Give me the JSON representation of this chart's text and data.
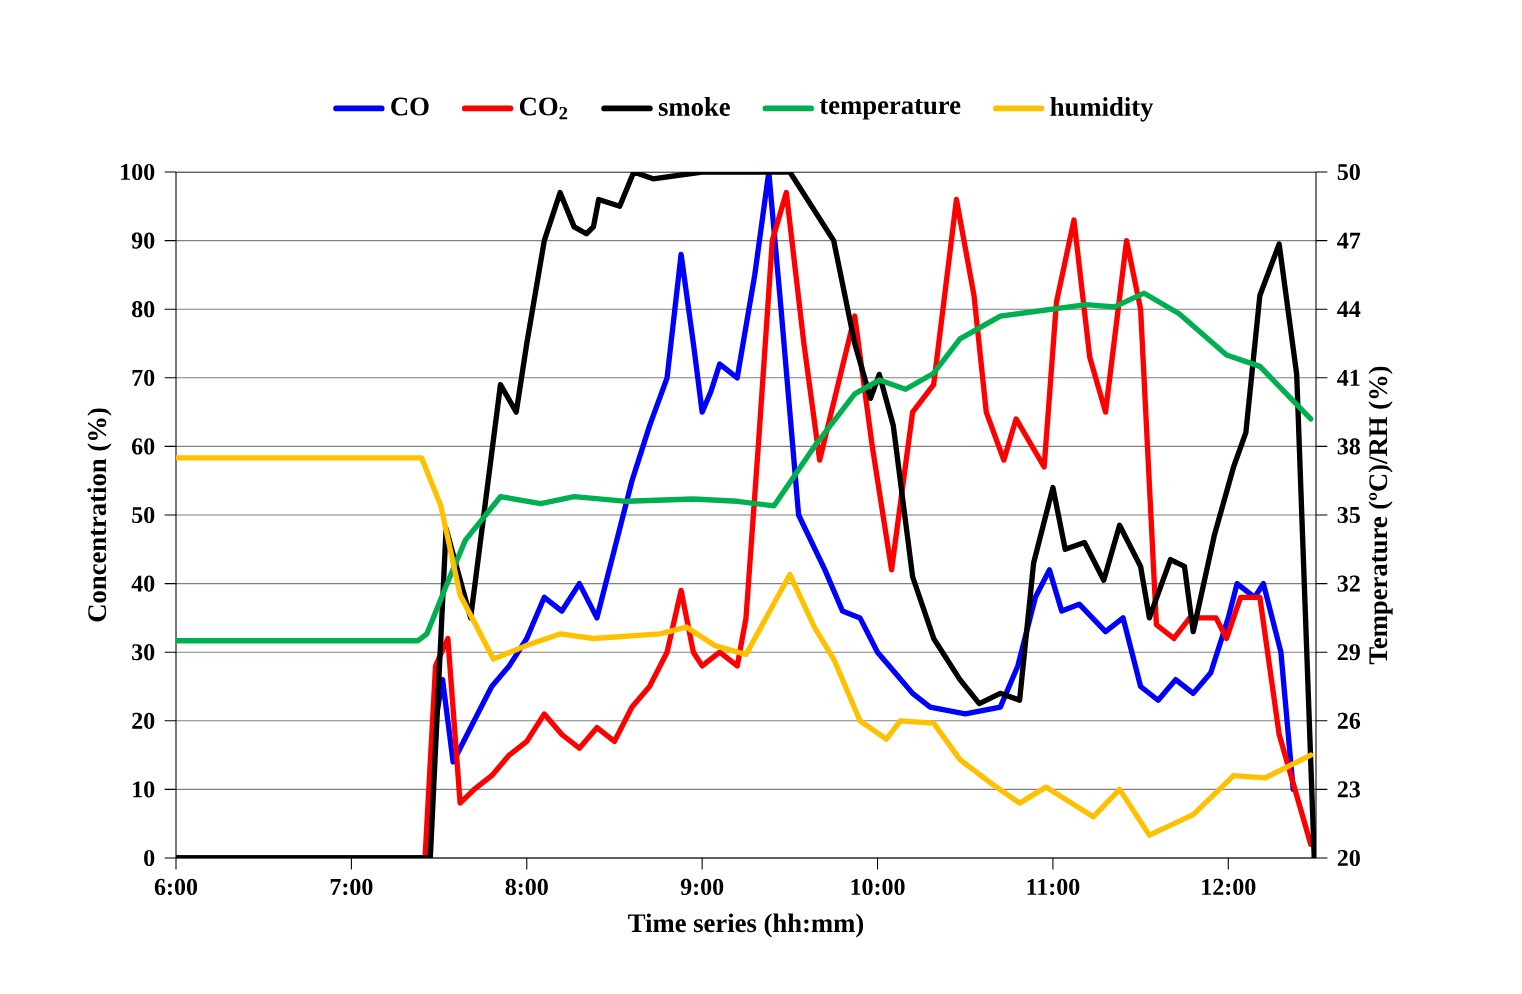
{
  "chart_data": {
    "type": "line",
    "xlabel": "Time series (hh:mm)",
    "ylabel": "Concentration (%)",
    "y2label": "Temperature (ºC)/RH (%)",
    "xlim": [
      6,
      12.5
    ],
    "xticks": [
      {
        "value": 6,
        "label": "6:00"
      },
      {
        "value": 7,
        "label": "7:00"
      },
      {
        "value": 8,
        "label": "8:00"
      },
      {
        "value": 9,
        "label": "9:00"
      },
      {
        "value": 10,
        "label": "10:00"
      },
      {
        "value": 11,
        "label": "11:00"
      },
      {
        "value": 12,
        "label": "12:00"
      }
    ],
    "ylim": [
      0,
      100
    ],
    "yticks": [
      0,
      10,
      20,
      30,
      40,
      50,
      60,
      70,
      80,
      90,
      100
    ],
    "y2lim": [
      20,
      50
    ],
    "y2ticks": [
      20,
      23,
      26,
      29,
      32,
      35,
      38,
      41,
      44,
      47,
      50
    ],
    "grid": "y",
    "legend": "top",
    "series": [
      {
        "name": "CO",
        "color": "#0000ff",
        "x": [
          6,
          7.43,
          7.48,
          7.52,
          7.58,
          7.7,
          7.8,
          7.9,
          8.0,
          8.1,
          8.2,
          8.3,
          8.4,
          8.5,
          8.6,
          8.7,
          8.8,
          8.88,
          8.95,
          9.0,
          9.05,
          9.1,
          9.2,
          9.3,
          9.38,
          9.45,
          9.55,
          9.7,
          9.8,
          9.9,
          10.0,
          10.1,
          10.2,
          10.3,
          10.5,
          10.7,
          10.8,
          10.9,
          10.98,
          11.05,
          11.15,
          11.3,
          11.4,
          11.5,
          11.6,
          11.7,
          11.8,
          11.9,
          12.0,
          12.05,
          12.15,
          12.2,
          12.3,
          12.37
        ],
        "values": [
          0,
          0,
          20,
          26,
          14,
          20,
          25,
          28,
          32,
          38,
          36,
          40,
          35,
          45,
          55,
          63,
          70,
          88,
          75,
          65,
          68,
          72,
          70,
          85,
          100,
          80,
          50,
          42,
          36,
          35,
          30,
          27,
          24,
          22,
          21,
          22,
          28,
          38,
          42,
          36,
          37,
          33,
          35,
          25,
          23,
          26,
          24,
          27,
          35,
          40,
          38,
          40,
          30,
          10
        ]
      },
      {
        "name": "CO$_{2}$",
        "color": "#ff0000",
        "x": [
          6,
          7.42,
          7.48,
          7.55,
          7.62,
          7.7,
          7.8,
          7.9,
          8.0,
          8.1,
          8.2,
          8.3,
          8.4,
          8.5,
          8.6,
          8.7,
          8.8,
          8.88,
          8.95,
          9.0,
          9.1,
          9.2,
          9.25,
          9.32,
          9.4,
          9.48,
          9.58,
          9.67,
          9.87,
          9.97,
          10.08,
          10.2,
          10.32,
          10.45,
          10.55,
          10.62,
          10.72,
          10.79,
          10.95,
          11.02,
          11.12,
          11.21,
          11.3,
          11.42,
          11.5,
          11.59,
          11.69,
          11.78,
          11.93,
          11.99,
          12.07,
          12.18,
          12.29,
          12.47
        ],
        "values": [
          0,
          0,
          28,
          32,
          8,
          10,
          12,
          15,
          17,
          21,
          18,
          16,
          19,
          17,
          22,
          25,
          30,
          39,
          30,
          28,
          30,
          28,
          35,
          60,
          90,
          97,
          75,
          58,
          79,
          60,
          42,
          65,
          69,
          96,
          82,
          65,
          58,
          64,
          57,
          81,
          93,
          73,
          65,
          90,
          80,
          34,
          32,
          35,
          35,
          32,
          38,
          38,
          18,
          2
        ]
      },
      {
        "name": "smoke",
        "color": "#000000",
        "x": [
          6,
          7.45,
          7.54,
          7.68,
          7.73,
          7.85,
          7.94,
          8.0,
          8.1,
          8.19,
          8.27,
          8.34,
          8.38,
          8.41,
          8.53,
          8.61,
          8.72,
          9.0,
          9.5,
          9.75,
          9.87,
          9.96,
          10.01,
          10.09,
          10.2,
          10.32,
          10.47,
          10.58,
          10.7,
          10.81,
          10.89,
          11.0,
          11.07,
          11.18,
          11.29,
          11.38,
          11.5,
          11.55,
          11.67,
          11.75,
          11.8,
          11.92,
          12.03,
          12.1,
          12.18,
          12.29,
          12.39,
          12.49
        ],
        "values": [
          0,
          0,
          48,
          35,
          45,
          69,
          65,
          75,
          90,
          97,
          92,
          91,
          92,
          96,
          95,
          100,
          99,
          100,
          100,
          90,
          75,
          67,
          70.5,
          63,
          41,
          32,
          26,
          22.5,
          24,
          23,
          43,
          54,
          45,
          46,
          40.5,
          48.5,
          42.5,
          35,
          43.5,
          42.5,
          33,
          47,
          57,
          62,
          82,
          89.5,
          70.5,
          0
        ]
      },
      {
        "name": "temperature",
        "color": "#00b050",
        "axis": "y2",
        "x": [
          6,
          7.38,
          7.43,
          7.54,
          7.65,
          7.85,
          8.08,
          8.27,
          8.57,
          8.95,
          9.2,
          9.41,
          9.64,
          9.87,
          10.01,
          10.16,
          10.32,
          10.47,
          10.7,
          11.19,
          11.35,
          11.52,
          11.72,
          11.99,
          12.18,
          12.47
        ],
        "values": [
          29.5,
          29.5,
          29.8,
          31.9,
          33.9,
          35.8,
          35.5,
          35.8,
          35.6,
          35.7,
          35.6,
          35.4,
          38,
          40.3,
          40.9,
          40.5,
          41.2,
          42.7,
          43.7,
          44.2,
          44.1,
          44.7,
          43.8,
          42,
          41.5,
          39.2
        ]
      },
      {
        "name": "humidity",
        "color": "#ffc000",
        "axis": "y2",
        "x": [
          6,
          7.4,
          7.51,
          7.62,
          7.81,
          8.0,
          8.19,
          8.38,
          8.76,
          8.91,
          9.07,
          9.25,
          9.5,
          9.64,
          9.75,
          9.9,
          10.05,
          10.13,
          10.32,
          10.47,
          10.66,
          10.81,
          10.96,
          11.23,
          11.38,
          11.55,
          11.8,
          12.03,
          12.21,
          12.47
        ],
        "values": [
          37.5,
          37.5,
          35.4,
          31.5,
          28.7,
          29.3,
          29.8,
          29.6,
          29.8,
          30.1,
          29.3,
          28.9,
          32.4,
          30.1,
          28.7,
          26,
          25.2,
          26,
          25.9,
          24.3,
          23.2,
          22.4,
          23.1,
          21.8,
          23,
          21,
          21.9,
          23.6,
          23.5,
          24.5
        ]
      }
    ]
  }
}
